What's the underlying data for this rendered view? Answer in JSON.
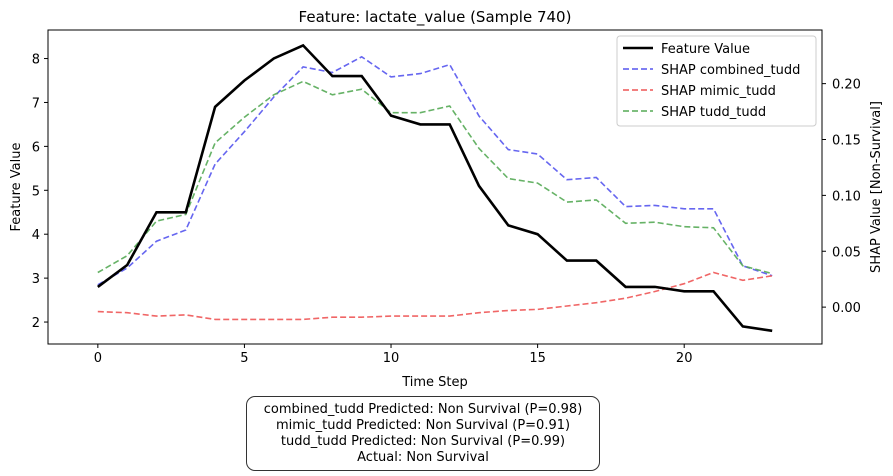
{
  "chart_data": {
    "type": "line",
    "title": "Feature: lactate_value (Sample 740)",
    "xlabel": "Time Step",
    "ylabel_left": "Feature Value",
    "ylabel_right": "SHAP Value [Non-Survival]",
    "xlim": [
      -1.7,
      24.7
    ],
    "ylim_left": [
      1.5,
      8.65
    ],
    "ylim_right": [
      -0.033,
      0.248
    ],
    "x_ticks": [
      0,
      5,
      10,
      15,
      20
    ],
    "y_ticks_left": [
      2,
      3,
      4,
      5,
      6,
      7,
      8
    ],
    "y_ticks_right": [
      "0.00",
      "0.05",
      "0.10",
      "0.15",
      "0.20"
    ],
    "x": [
      0,
      1,
      2,
      3,
      4,
      5,
      6,
      7,
      8,
      9,
      10,
      11,
      12,
      13,
      14,
      15,
      16,
      17,
      18,
      19,
      20,
      21,
      22,
      23
    ],
    "feature_series": {
      "name": "Feature Value",
      "color": "#000000",
      "axis": "left",
      "values": [
        2.8,
        3.3,
        4.5,
        4.5,
        6.9,
        7.5,
        8.0,
        8.3,
        7.6,
        7.6,
        6.7,
        6.5,
        6.5,
        5.1,
        4.2,
        4.0,
        3.4,
        3.4,
        2.8,
        2.8,
        2.7,
        2.7,
        1.9,
        1.8
      ]
    },
    "shap_series": [
      {
        "name": "SHAP combined_tudd",
        "color": "#5555ee",
        "axis": "right",
        "values": [
          0.02,
          0.035,
          0.059,
          0.069,
          0.128,
          0.157,
          0.188,
          0.215,
          0.21,
          0.224,
          0.206,
          0.209,
          0.217,
          0.171,
          0.141,
          0.137,
          0.114,
          0.116,
          0.09,
          0.091,
          0.088,
          0.088,
          0.037,
          0.028
        ]
      },
      {
        "name": "SHAP mimic_tudd",
        "color": "#ee5555",
        "axis": "right",
        "values": [
          -0.004,
          -0.005,
          -0.008,
          -0.007,
          -0.011,
          -0.011,
          -0.011,
          -0.011,
          -0.009,
          -0.009,
          -0.008,
          -0.008,
          -0.008,
          -0.005,
          -0.003,
          -0.002,
          0.001,
          0.004,
          0.008,
          0.014,
          0.021,
          0.031,
          0.024,
          0.028
        ]
      },
      {
        "name": "SHAP tudd_tudd",
        "color": "#55aa55",
        "axis": "right",
        "values": [
          0.031,
          0.046,
          0.077,
          0.083,
          0.147,
          0.17,
          0.19,
          0.202,
          0.19,
          0.195,
          0.174,
          0.174,
          0.18,
          0.142,
          0.115,
          0.111,
          0.094,
          0.096,
          0.075,
          0.076,
          0.072,
          0.071,
          0.037,
          0.03
        ]
      }
    ],
    "legend_placement": "top-right",
    "grid": false
  },
  "info_box": {
    "lines": [
      "combined_tudd Predicted: Non Survival (P=0.98)",
      "mimic_tudd Predicted: Non Survival (P=0.91)",
      "tudd_tudd Predicted: Non Survival (P=0.99)",
      "Actual: Non Survival"
    ]
  }
}
